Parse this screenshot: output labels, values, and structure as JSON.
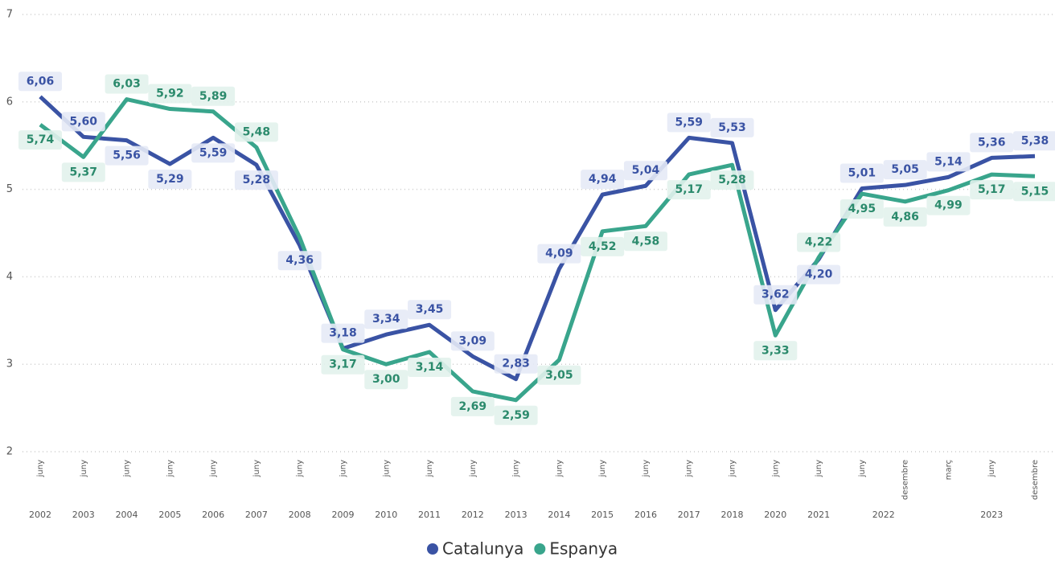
{
  "chart_data": {
    "type": "line",
    "categories": [
      "juny",
      "juny",
      "juny",
      "juny",
      "juny",
      "juny",
      "juny",
      "juny",
      "juny",
      "juny",
      "juny",
      "juny",
      "juny",
      "juny",
      "juny",
      "juny",
      "juny",
      "juny",
      "juny",
      "juny",
      "desembre",
      "març",
      "juny",
      "desembre"
    ],
    "year_groups": [
      {
        "label": "2002",
        "count": 1
      },
      {
        "label": "2003",
        "count": 1
      },
      {
        "label": "2004",
        "count": 1
      },
      {
        "label": "2005",
        "count": 1
      },
      {
        "label": "2006",
        "count": 1
      },
      {
        "label": "2007",
        "count": 1
      },
      {
        "label": "2008",
        "count": 1
      },
      {
        "label": "2009",
        "count": 1
      },
      {
        "label": "2010",
        "count": 1
      },
      {
        "label": "2011",
        "count": 1
      },
      {
        "label": "2012",
        "count": 1
      },
      {
        "label": "2013",
        "count": 1
      },
      {
        "label": "2014",
        "count": 1
      },
      {
        "label": "2015",
        "count": 1
      },
      {
        "label": "2016",
        "count": 1
      },
      {
        "label": "2017",
        "count": 1
      },
      {
        "label": "2018",
        "count": 1
      },
      {
        "label": "2020",
        "count": 1
      },
      {
        "label": "2021",
        "count": 1
      },
      {
        "label": "2022",
        "count": 2
      },
      {
        "label": "2023",
        "count": 3
      }
    ],
    "series": [
      {
        "name": "Catalunya",
        "color": "#3a53a4",
        "values": [
          6.06,
          5.6,
          5.56,
          5.29,
          5.59,
          5.28,
          4.36,
          3.18,
          3.34,
          3.45,
          3.09,
          2.83,
          4.09,
          4.94,
          5.04,
          5.59,
          5.53,
          3.62,
          4.2,
          5.01,
          5.05,
          5.14,
          5.36,
          5.38
        ],
        "value_labels": [
          "6,06",
          "5,60",
          "5,56",
          "5,29",
          "5,59",
          "5,28",
          "4,36",
          "3,18",
          "3,34",
          "3,45",
          "3,09",
          "2,83",
          "4,09",
          "4,94",
          "5,04",
          "5,59",
          "5,53",
          "3,62",
          "4,20",
          "5,01",
          "5,05",
          "5,14",
          "5,36",
          "5,38"
        ]
      },
      {
        "name": "Espanya",
        "color": "#39a58c",
        "values": [
          5.74,
          5.37,
          6.03,
          5.92,
          5.89,
          5.48,
          4.45,
          3.17,
          3.0,
          3.14,
          2.69,
          2.59,
          3.05,
          4.52,
          4.58,
          5.17,
          5.28,
          3.33,
          4.22,
          4.95,
          4.86,
          4.99,
          5.17,
          5.15
        ],
        "value_labels": [
          "5,74",
          "5,37",
          "6,03",
          "5,92",
          "5,89",
          "5,48",
          null,
          "3,17",
          "3,00",
          "3,14",
          "2,69",
          "2,59",
          "3,05",
          "4,52",
          "4,58",
          "5,17",
          "5,28",
          "3,33",
          "4,22",
          "4,95",
          "4,86",
          "4,99",
          "5,17",
          "5,15"
        ]
      }
    ],
    "ylim": [
      2,
      7
    ],
    "yticks": [
      2,
      3,
      4,
      5,
      6,
      7
    ],
    "grid": true,
    "legend": "bottom"
  }
}
